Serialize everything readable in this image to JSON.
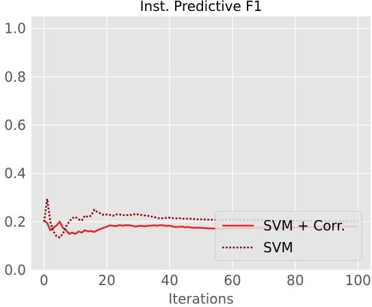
{
  "chart_data": {
    "type": "line",
    "title": "Inst. Predictive F1",
    "xlabel": "Iterations",
    "ylabel": "",
    "xlim": [
      -4,
      104
    ],
    "ylim": [
      0.0,
      1.05
    ],
    "xticks": [
      0,
      20,
      40,
      60,
      80,
      100
    ],
    "xtick_labels": [
      "0",
      "20",
      "40",
      "60",
      "80",
      "100"
    ],
    "yticks": [
      0.0,
      0.2,
      0.4,
      0.6,
      0.8,
      1.0
    ],
    "ytick_labels": [
      "0.0",
      "0.2",
      "0.4",
      "0.6",
      "0.8",
      "1.0"
    ],
    "grid": true,
    "legend_position": "lower-right",
    "series": [
      {
        "name": "SVM + Corr.",
        "style": "solid",
        "color": "#e8252a",
        "x": [
          0,
          1,
          2,
          3,
          4,
          5,
          6,
          7,
          8,
          9,
          10,
          11,
          12,
          13,
          14,
          15,
          16,
          17,
          18,
          19,
          20,
          21,
          22,
          23,
          24,
          25,
          26,
          27,
          28,
          29,
          30,
          31,
          32,
          33,
          34,
          35,
          36,
          37,
          38,
          39,
          40,
          41,
          42,
          43,
          44,
          45,
          46,
          47,
          48,
          49,
          50,
          52,
          54,
          56,
          58,
          60,
          62,
          64,
          66,
          68,
          70,
          72,
          74,
          76,
          78,
          80,
          82,
          84,
          86,
          88,
          90,
          92,
          94,
          96,
          98,
          100
        ],
        "y": [
          0.205,
          0.195,
          0.165,
          0.175,
          0.185,
          0.2,
          0.175,
          0.165,
          0.15,
          0.155,
          0.15,
          0.16,
          0.155,
          0.165,
          0.16,
          0.162,
          0.158,
          0.165,
          0.17,
          0.175,
          0.18,
          0.185,
          0.183,
          0.182,
          0.186,
          0.184,
          0.186,
          0.185,
          0.184,
          0.18,
          0.182,
          0.183,
          0.181,
          0.183,
          0.184,
          0.185,
          0.184,
          0.186,
          0.185,
          0.183,
          0.184,
          0.18,
          0.178,
          0.179,
          0.18,
          0.177,
          0.178,
          0.176,
          0.175,
          0.176,
          0.175,
          0.173,
          0.172,
          0.171,
          0.173,
          0.172,
          0.174,
          0.173,
          0.174,
          0.175,
          0.175,
          0.176,
          0.176,
          0.175,
          0.176,
          0.177,
          0.177,
          0.178,
          0.178,
          0.179,
          0.18,
          0.179,
          0.18,
          0.18,
          0.18,
          0.18
        ]
      },
      {
        "name": "SVM",
        "style": "dotted",
        "color": "#8b0000",
        "x": [
          0,
          1,
          2,
          3,
          4,
          5,
          6,
          7,
          8,
          9,
          10,
          11,
          12,
          13,
          14,
          15,
          16,
          17,
          18,
          19,
          20,
          21,
          22,
          23,
          24,
          25,
          26,
          27,
          28,
          29,
          30,
          31,
          32,
          33,
          34,
          35,
          36,
          37,
          38,
          39,
          40,
          41,
          42,
          43,
          44,
          45,
          46,
          47,
          48,
          49,
          50,
          52,
          54,
          56,
          58,
          60,
          62,
          64,
          66,
          68,
          70,
          72,
          74,
          76,
          78,
          80,
          82,
          84,
          86,
          88,
          90,
          92,
          94,
          96,
          98,
          100
        ],
        "y": [
          0.2,
          0.295,
          0.2,
          0.16,
          0.14,
          0.135,
          0.15,
          0.18,
          0.2,
          0.215,
          0.22,
          0.21,
          0.205,
          0.225,
          0.22,
          0.225,
          0.25,
          0.24,
          0.235,
          0.228,
          0.23,
          0.228,
          0.225,
          0.23,
          0.23,
          0.228,
          0.226,
          0.229,
          0.228,
          0.232,
          0.23,
          0.228,
          0.226,
          0.225,
          0.222,
          0.22,
          0.216,
          0.214,
          0.215,
          0.216,
          0.217,
          0.215,
          0.214,
          0.215,
          0.213,
          0.212,
          0.213,
          0.212,
          0.211,
          0.21,
          0.21,
          0.209,
          0.208,
          0.208,
          0.209,
          0.209,
          0.208,
          0.207,
          0.207,
          0.206,
          0.206,
          0.206,
          0.205,
          0.205,
          0.205,
          0.204,
          0.204,
          0.204,
          0.203,
          0.203,
          0.203,
          0.202,
          0.202,
          0.202,
          0.202,
          0.202
        ]
      }
    ]
  }
}
